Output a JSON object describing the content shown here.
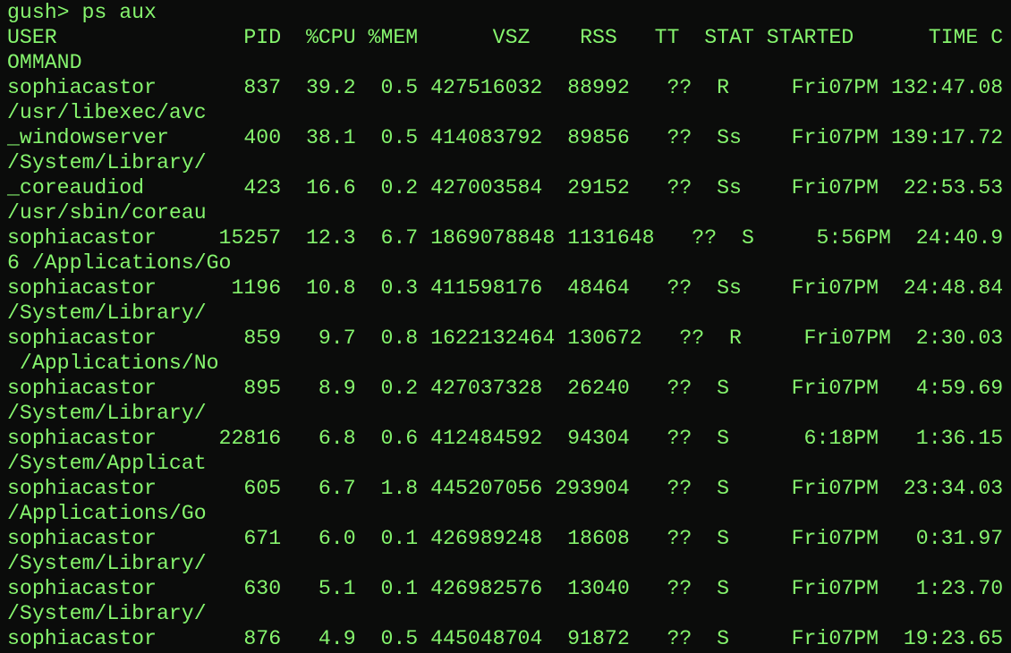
{
  "terminal": {
    "lines": [
      "gush> ps aux",
      "USER               PID  %CPU %MEM      VSZ    RSS   TT  STAT STARTED      TIME C",
      "OMMAND",
      "sophiacastor       837  39.2  0.5 427516032  88992   ??  R     Fri07PM 132:47.08",
      "/usr/libexec/avc",
      "_windowserver      400  38.1  0.5 414083792  89856   ??  Ss    Fri07PM 139:17.72",
      "/System/Library/",
      "_coreaudiod        423  16.6  0.2 427003584  29152   ??  Ss    Fri07PM  22:53.53",
      "/usr/sbin/coreau",
      "sophiacastor     15257  12.3  6.7 1869078848 1131648   ??  S     5:56PM  24:40.9",
      "6 /Applications/Go",
      "sophiacastor      1196  10.8  0.3 411598176  48464   ??  Ss    Fri07PM  24:48.84",
      "/System/Library/",
      "sophiacastor       859   9.7  0.8 1622132464 130672   ??  R     Fri07PM  2:30.03",
      " /Applications/No",
      "sophiacastor       895   8.9  0.2 427037328  26240   ??  S     Fri07PM   4:59.69",
      "/System/Library/",
      "sophiacastor     22816   6.8  0.6 412484592  94304   ??  S      6:18PM   1:36.15",
      "/System/Applicat",
      "sophiacastor       605   6.7  1.8 445207056 293904   ??  S     Fri07PM  23:34.03",
      "/Applications/Go",
      "sophiacastor       671   6.0  0.1 426989248  18608   ??  S     Fri07PM   0:31.97",
      "/System/Library/",
      "sophiacastor       630   5.1  0.1 426982576  13040   ??  S     Fri07PM   1:23.70",
      "/System/Library/",
      "sophiacastor       876   4.9  0.5 445048704  91872   ??  S     Fri07PM  19:23.65"
    ]
  }
}
